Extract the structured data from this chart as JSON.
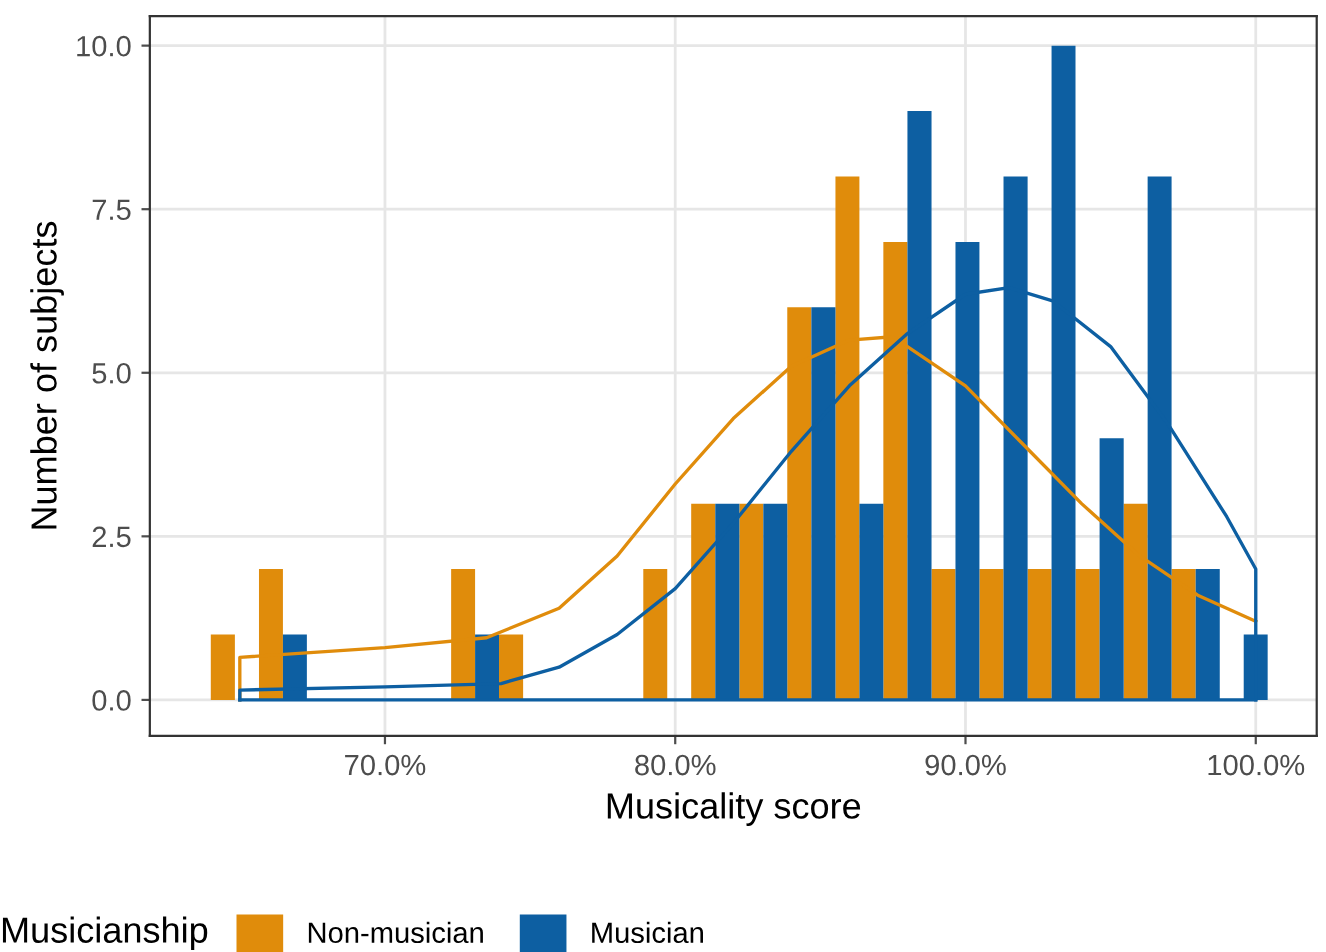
{
  "chart_data": {
    "type": "histogram",
    "xlabel": "Musicality score",
    "ylabel": "Number of subjects",
    "legend_title": "Musicianship",
    "bins": [
      64.0,
      65.66,
      67.31,
      68.97,
      70.62,
      72.28,
      73.93,
      75.59,
      77.24,
      78.9,
      80.55,
      82.21,
      83.86,
      85.52,
      87.17,
      88.83,
      90.48,
      92.14,
      93.79,
      95.45,
      97.1,
      98.76,
      100.41
    ],
    "series": [
      {
        "name": "Non-musician",
        "color": "#e08c0b",
        "values": [
          1,
          2,
          0,
          0,
          0,
          2,
          1,
          0,
          0,
          2,
          3,
          3,
          6,
          8,
          7,
          2,
          2,
          2,
          2,
          3,
          2,
          0
        ]
      },
      {
        "name": "Musician",
        "color": "#0d5fa2",
        "values": [
          0,
          1,
          0,
          0,
          0,
          1,
          0,
          0,
          0,
          0,
          3,
          3,
          6,
          3,
          9,
          7,
          8,
          10,
          4,
          8,
          2,
          1
        ]
      },
      {
        "type": "line",
        "color": "#e08c0b",
        "x": [
          65,
          65,
          70,
          73.5,
          76,
          78,
          80,
          82,
          84,
          86,
          87.5,
          88,
          90,
          92,
          94,
          96,
          98,
          100
        ],
        "values": [
          0,
          0.65,
          0.8,
          0.95,
          1.4,
          2.2,
          3.3,
          4.3,
          5.1,
          5.5,
          5.55,
          5.4,
          4.8,
          3.9,
          3.0,
          2.2,
          1.6,
          1.2
        ]
      },
      {
        "type": "line",
        "color": "#0d5fa2",
        "x": [
          65,
          65,
          70,
          74,
          76,
          78,
          80,
          82,
          84,
          86,
          88,
          90,
          91.5,
          93,
          95,
          97,
          99,
          100,
          100
        ],
        "values": [
          0,
          0.15,
          0.2,
          0.25,
          0.5,
          1.0,
          1.7,
          2.7,
          3.8,
          4.8,
          5.6,
          6.2,
          6.3,
          6.1,
          5.4,
          4.2,
          2.8,
          2.0,
          0
        ]
      },
      {
        "type": "line",
        "color": "#0d5fa2",
        "x": [
          65,
          100
        ],
        "values": [
          0,
          0
        ]
      }
    ],
    "xlim": [
      61.9,
      102.1
    ],
    "ylim": [
      -0.55,
      10.45
    ],
    "xticks": [
      {
        "value": 70,
        "label": "70.0%"
      },
      {
        "value": 80,
        "label": "80.0%"
      },
      {
        "value": 90,
        "label": "90.0%"
      },
      {
        "value": 100,
        "label": "100.0%"
      }
    ],
    "yticks": [
      {
        "value": 0,
        "label": "0.0"
      },
      {
        "value": 2.5,
        "label": "2.5"
      },
      {
        "value": 5,
        "label": "5.0"
      },
      {
        "value": 7.5,
        "label": "7.5"
      },
      {
        "value": 10,
        "label": "10.0"
      }
    ],
    "grid": true,
    "legend": "bottom"
  }
}
